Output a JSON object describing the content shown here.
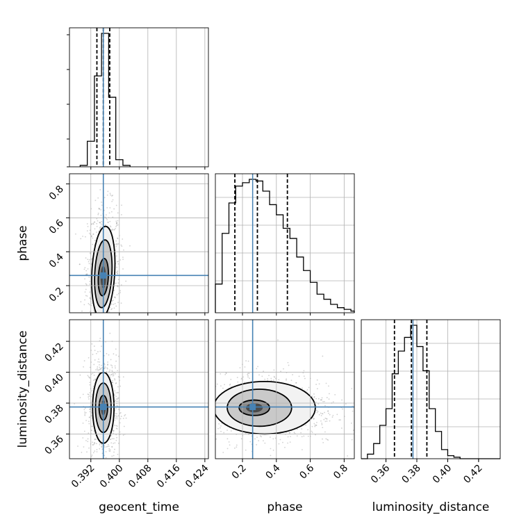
{
  "parameters": [
    "geocent_time",
    "phase",
    "luminosity_distance"
  ],
  "injection": {
    "geocent_time": 0.3955,
    "phase": 0.26,
    "luminosity_distance": 0.3775
  },
  "colors": {
    "truth": "#4682b4",
    "hist": "#000000",
    "grid": "#b0b0b0",
    "contour": "#000000"
  },
  "chart_data": {
    "type": "corner",
    "title": "",
    "axes": {
      "geocent_time": {
        "range": [
          0.386,
          0.425
        ],
        "ticks": [
          "0.392",
          "0.400",
          "0.408",
          "0.416",
          "0.424"
        ],
        "tick_values": [
          0.392,
          0.4,
          0.408,
          0.416,
          0.424
        ]
      },
      "phase": {
        "range": [
          0.04,
          0.86
        ],
        "ticks": [
          "0.2",
          "0.4",
          "0.6",
          "0.8"
        ],
        "tick_values": [
          0.2,
          0.4,
          0.6,
          0.8
        ]
      },
      "luminosity_distance": {
        "range": [
          0.344,
          0.434
        ],
        "ticks": [
          "0.36",
          "0.38",
          "0.40",
          "0.42"
        ],
        "tick_values": [
          0.36,
          0.38,
          0.4,
          0.42
        ]
      }
    },
    "histograms": {
      "geocent_time": {
        "bin_edges": [
          0.389,
          0.391,
          0.393,
          0.395,
          0.397,
          0.399,
          0.401,
          0.403
        ],
        "density": [
          0.01,
          0.18,
          0.64,
          0.94,
          0.49,
          0.05,
          0.01
        ],
        "quantiles": [
          0.3937,
          0.3955,
          0.3973
        ]
      },
      "phase": {
        "bin_edges": [
          0.04,
          0.08,
          0.12,
          0.16,
          0.2,
          0.24,
          0.28,
          0.32,
          0.36,
          0.4,
          0.44,
          0.48,
          0.52,
          0.56,
          0.6,
          0.64,
          0.68,
          0.72,
          0.76,
          0.8,
          0.84,
          0.86
        ],
        "density": [
          0.17,
          0.47,
          0.65,
          0.75,
          0.77,
          0.79,
          0.78,
          0.72,
          0.64,
          0.58,
          0.5,
          0.44,
          0.33,
          0.25,
          0.18,
          0.11,
          0.08,
          0.05,
          0.03,
          0.02,
          0.01
        ],
        "quantiles": [
          0.155,
          0.288,
          0.465
        ]
      },
      "luminosity_distance": {
        "bin_edges": [
          0.344,
          0.348,
          0.352,
          0.356,
          0.36,
          0.364,
          0.368,
          0.372,
          0.376,
          0.38,
          0.384,
          0.388,
          0.392,
          0.396,
          0.4,
          0.404,
          0.408,
          0.412,
          0.416,
          0.42,
          0.424,
          0.428,
          0.434
        ],
        "density": [
          0.0,
          0.03,
          0.1,
          0.22,
          0.33,
          0.56,
          0.71,
          0.8,
          0.88,
          0.74,
          0.58,
          0.33,
          0.18,
          0.06,
          0.02,
          0.01,
          0.0,
          0.0,
          0.0,
          0.0,
          0.0,
          0.0
        ],
        "quantiles": [
          0.3655,
          0.3765,
          0.3865
        ]
      }
    },
    "contours_2d": [
      {
        "x": "geocent_time",
        "y": "phase",
        "levels": [
          {
            "center": [
              0.3955,
              0.28
            ],
            "sx": 0.0032,
            "sy": 0.27,
            "rot": 0.1
          },
          {
            "center": [
              0.3955,
              0.27
            ],
            "sx": 0.0024,
            "sy": 0.2,
            "rot": 0.1
          },
          {
            "center": [
              0.3955,
              0.25
            ],
            "sx": 0.0014,
            "sy": 0.11,
            "rot": 0.1
          }
        ]
      },
      {
        "x": "geocent_time",
        "y": "luminosity_distance",
        "levels": [
          {
            "center": [
              0.3955,
              0.377
            ],
            "sx": 0.003,
            "sy": 0.023
          },
          {
            "center": [
              0.3955,
              0.377
            ],
            "sx": 0.0022,
            "sy": 0.016
          },
          {
            "center": [
              0.3955,
              0.377
            ],
            "sx": 0.0012,
            "sy": 0.008
          }
        ]
      },
      {
        "x": "phase",
        "y": "luminosity_distance",
        "levels": [
          {
            "center": [
              0.33,
              0.377
            ],
            "sx": 0.3,
            "sy": 0.017
          },
          {
            "center": [
              0.3,
              0.377
            ],
            "sx": 0.19,
            "sy": 0.012
          },
          {
            "center": [
              0.27,
              0.377
            ],
            "sx": 0.09,
            "sy": 0.005
          }
        ]
      }
    ]
  }
}
